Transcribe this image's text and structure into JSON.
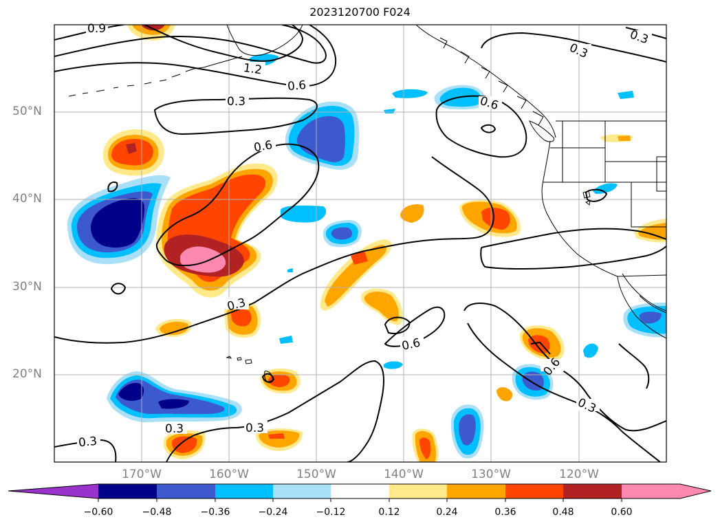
{
  "title": "2023120700 F024",
  "lat_labels": [
    "50°N",
    "40°N",
    "30°N",
    "20°N"
  ],
  "lon_labels": [
    "170°W",
    "160°W",
    "150°W",
    "140°W",
    "130°W",
    "120°W"
  ],
  "contour_labels": [
    "0.9",
    "1.2",
    "0.6",
    "0.3",
    "0.6",
    "0.6",
    "0.3",
    "0.3",
    "0.3",
    "0.6",
    "0.3",
    "0.3",
    "0.3",
    "0.3",
    "0.6"
  ],
  "colorbar": {
    "tick_labels": [
      "−0.60",
      "−0.48",
      "−0.36",
      "−0.24",
      "−0.12",
      "0.12",
      "0.24",
      "0.36",
      "0.48",
      "0.60"
    ],
    "colors": [
      "#9a33cc",
      "#000088",
      "#3c5acd",
      "#00bfff",
      "#a9e0f8",
      "#ffffff",
      "#ffe98a",
      "#ffa500",
      "#ff4500",
      "#b22222",
      "#ff88b0",
      "#ff88b0"
    ]
  },
  "map": {
    "extent": {
      "lon": [
        -180,
        -110
      ],
      "lat": [
        10,
        60
      ]
    },
    "gridlines": true,
    "field_colors": {
      "deep_neg": "#000088",
      "neg": "#3c5acd",
      "light_neg": "#00bfff",
      "faint_neg": "#a9e0f8",
      "faint_pos": "#ffe98a",
      "pos": "#ffa500",
      "strong_pos": "#ff4500",
      "very_strong_pos": "#b22222",
      "max_pos": "#ff88b0"
    }
  }
}
